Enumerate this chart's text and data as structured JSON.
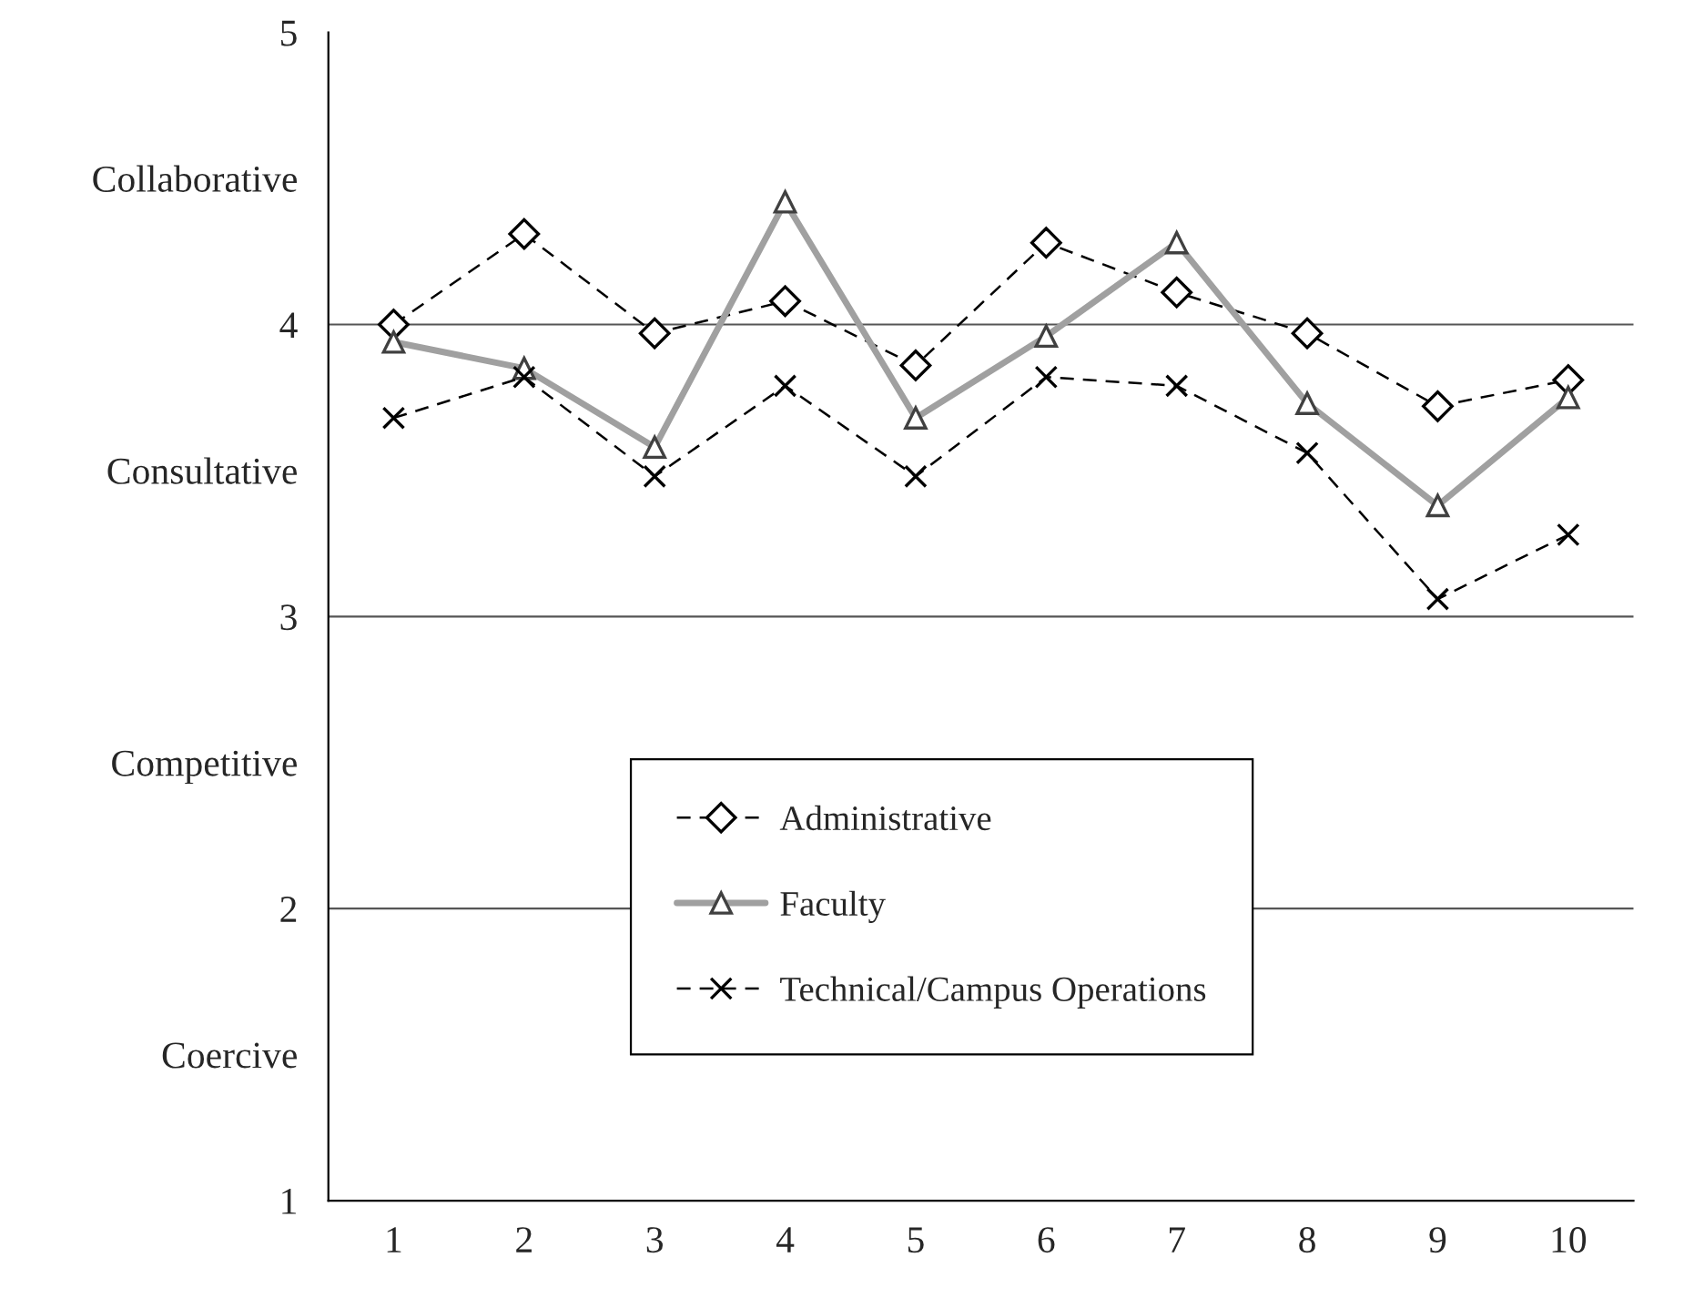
{
  "chart_data": {
    "type": "line",
    "categories": [
      "1",
      "2",
      "3",
      "4",
      "5",
      "6",
      "7",
      "8",
      "9",
      "10"
    ],
    "series": [
      {
        "name": "Administrative",
        "color": "#000000",
        "marker": "diamond",
        "line_style": "dashed",
        "values": [
          4.0,
          4.31,
          3.97,
          4.08,
          3.86,
          4.28,
          4.11,
          3.97,
          3.72,
          3.81
        ]
      },
      {
        "name": "Faculty",
        "color": "#a0a0a0",
        "marker": "triangle",
        "line_style": "solid",
        "values": [
          3.94,
          3.85,
          3.58,
          4.42,
          3.68,
          3.96,
          4.28,
          3.73,
          3.38,
          3.75
        ]
      },
      {
        "name": "Technical/Campus Operations",
        "color": "#000000",
        "marker": "cross",
        "line_style": "dashed",
        "values": [
          3.68,
          3.82,
          3.48,
          3.79,
          3.48,
          3.82,
          3.79,
          3.56,
          3.06,
          3.28
        ]
      }
    ],
    "ylim": [
      1,
      5
    ],
    "yticks": [
      1,
      {
        "value": 1.5,
        "label": "Coercive"
      },
      2,
      {
        "value": 2.5,
        "label": "Competitive"
      },
      3,
      {
        "value": 3.5,
        "label": "Consultative"
      },
      4,
      {
        "value": 4.5,
        "label": "Collaborative"
      },
      5
    ],
    "ref_lines": [
      {
        "axis": "y",
        "value": 2,
        "label": null
      },
      {
        "axis": "y",
        "value": 3,
        "label": null
      },
      {
        "axis": "y",
        "value": 4,
        "label": null
      }
    ],
    "grid": false,
    "legend": "bottom"
  }
}
